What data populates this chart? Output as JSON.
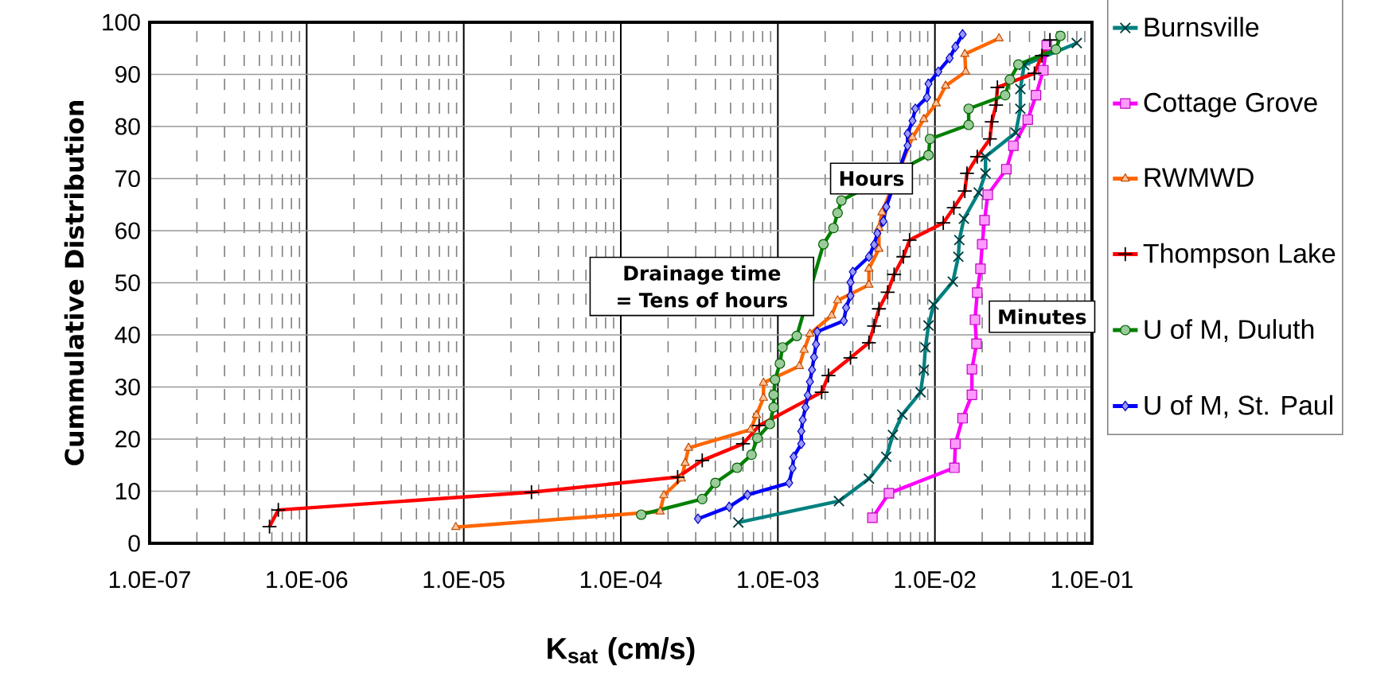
{
  "chart_data": {
    "type": "line",
    "xlabel": "K$_{sat}$ (cm/s)",
    "ylabel": "Cummulative Distribution",
    "log": "x",
    "grid": true,
    "legend": "right",
    "line_style": "solid",
    "xlim": [
      1e-07,
      0.1
    ],
    "xticks": [
      {
        "value": 1e-07,
        "label": "1.0E-07"
      },
      {
        "value": 1e-06,
        "label": "1.0E-06"
      },
      {
        "value": 1e-05,
        "label": "1.0E-05"
      },
      {
        "value": 0.0001,
        "label": "1.0E-04"
      },
      {
        "value": 0.001,
        "label": "1.0E-03"
      },
      {
        "value": 0.01,
        "label": "1.0E-02"
      },
      {
        "value": 0.1,
        "label": "1.0E-01"
      }
    ],
    "ylim": [
      0,
      100
    ],
    "yticks": [
      0,
      10,
      20,
      30,
      40,
      50,
      60,
      70,
      80,
      90,
      100
    ],
    "annotations": [
      "Hours",
      "Drainage time = Tens of hours",
      "Minutes"
    ],
    "series": [
      {
        "name": "Burnsville",
        "color": "#008080",
        "marker": "cross",
        "x": [
          0.00056,
          0.00245,
          0.0038,
          0.0049,
          0.0054,
          0.0062,
          0.0081,
          0.0085,
          0.0087,
          0.0091,
          0.0098,
          0.013,
          0.0141,
          0.0143,
          0.0153,
          0.019,
          0.021,
          0.021,
          0.0327,
          0.035,
          0.035,
          0.037,
          0.08
        ],
        "values": [
          4.0,
          8.1,
          12.4,
          16.6,
          20.8,
          24.7,
          29.0,
          33.3,
          37.6,
          41.8,
          45.8,
          50.2,
          55.0,
          58.2,
          62.3,
          67.3,
          71.0,
          74.2,
          78.8,
          83.4,
          87.2,
          91.8,
          96.0
        ]
      },
      {
        "name": "Cottage Grove",
        "color": "#ff00ff",
        "marker": "square",
        "x": [
          0.004,
          0.0051,
          0.0133,
          0.0135,
          0.015,
          0.0172,
          0.0172,
          0.0184,
          0.018,
          0.0186,
          0.0195,
          0.02,
          0.0207,
          0.0217,
          0.0285,
          0.0316,
          0.039,
          0.044,
          0.049,
          0.0515
        ],
        "values": [
          4.9,
          9.6,
          14.5,
          19.1,
          24.0,
          28.5,
          33.4,
          38.3,
          42.9,
          48.1,
          52.7,
          57.4,
          62.0,
          66.9,
          71.8,
          76.3,
          81.3,
          86.0,
          90.8,
          95.6
        ]
      },
      {
        "name": "RWMWD",
        "color": "#ff6600",
        "marker": "triangle",
        "x": [
          8.9e-06,
          0.000178,
          0.000188,
          0.000243,
          0.000257,
          0.00027,
          0.00067,
          0.00073,
          0.00081,
          0.00081,
          0.00137,
          0.00147,
          0.0016,
          0.0022,
          0.0024,
          0.0038,
          0.0038,
          0.0044,
          0.0044,
          0.0046,
          0.0072,
          0.0085,
          0.0102,
          0.0117,
          0.0157,
          0.0155,
          0.0256
        ],
        "values": [
          3.1,
          6.1,
          9.2,
          12.4,
          15.4,
          18.3,
          21.8,
          24.6,
          27.9,
          30.8,
          34.0,
          37.1,
          40.2,
          43.7,
          46.6,
          49.6,
          52.7,
          56.5,
          60.5,
          63.5,
          77.9,
          81.4,
          84.4,
          87.8,
          90.5,
          93.9,
          96.9
        ]
      },
      {
        "name": "Thompson Lake",
        "color": "#ff0000",
        "marker": "plus",
        "x": [
          5.8e-07,
          6.6e-07,
          2.7e-05,
          0.00023,
          0.00033,
          0.0006,
          0.00076,
          0.0019,
          0.0021,
          0.0029,
          0.0038,
          0.0041,
          0.0044,
          0.005,
          0.0055,
          0.0063,
          0.0069,
          0.0113,
          0.0132,
          0.0155,
          0.016,
          0.0186,
          0.0224,
          0.023,
          0.0245,
          0.025,
          0.043,
          0.048,
          0.054
        ],
        "values": [
          3.2,
          6.4,
          9.8,
          12.7,
          15.9,
          19.1,
          22.6,
          29.0,
          32.2,
          35.6,
          38.5,
          41.7,
          45.0,
          48.2,
          51.6,
          55.0,
          58.2,
          61.5,
          64.4,
          67.6,
          71.0,
          74.2,
          77.6,
          80.9,
          84.1,
          87.5,
          90.2,
          93.6,
          96.6
        ]
      },
      {
        "name": "U of M, Duluth",
        "color": "#008000",
        "marker": "circle",
        "x": [
          0.000135,
          0.00033,
          0.0004,
          0.00055,
          0.00068,
          0.00074,
          0.00089,
          0.00094,
          0.00094,
          0.00096,
          0.00103,
          0.00107,
          0.00132,
          0.00195,
          0.00226,
          0.0024,
          0.00254,
          0.0091,
          0.0093,
          0.0164,
          0.0164,
          0.028,
          0.03,
          0.034,
          0.059,
          0.063
        ],
        "values": [
          5.5,
          8.5,
          11.6,
          14.5,
          17.0,
          20.2,
          22.9,
          26.1,
          28.5,
          31.4,
          34.5,
          37.6,
          39.8,
          57.4,
          60.5,
          63.4,
          65.8,
          74.5,
          77.6,
          80.3,
          83.4,
          86.0,
          89.0,
          91.9,
          94.8,
          97.4
        ]
      },
      {
        "name": "U of M, St. Paul",
        "color": "#0000ff",
        "marker": "diamond",
        "x": [
          0.00031,
          0.00049,
          0.00064,
          0.00118,
          0.00124,
          0.00126,
          0.00141,
          0.00141,
          0.00144,
          0.0015,
          0.00155,
          0.0016,
          0.00165,
          0.0017,
          0.00175,
          0.00178,
          0.00263,
          0.00272,
          0.0029,
          0.0029,
          0.003,
          0.0038,
          0.0041,
          0.0043,
          0.0047,
          0.0049,
          0.0067,
          0.0067,
          0.0072,
          0.0075,
          0.0089,
          0.0091,
          0.0105,
          0.0124,
          0.0135,
          0.015
        ],
        "values": [
          4.7,
          7.0,
          9.3,
          11.6,
          14.4,
          16.6,
          19.1,
          21.5,
          23.7,
          26.1,
          28.4,
          31.0,
          33.3,
          35.7,
          38.2,
          40.6,
          42.7,
          45.2,
          47.5,
          50.1,
          52.1,
          55.0,
          57.3,
          59.5,
          61.8,
          64.6,
          76.3,
          78.6,
          81.1,
          83.4,
          85.6,
          88.2,
          90.5,
          93.1,
          95.3,
          97.7
        ]
      }
    ]
  }
}
